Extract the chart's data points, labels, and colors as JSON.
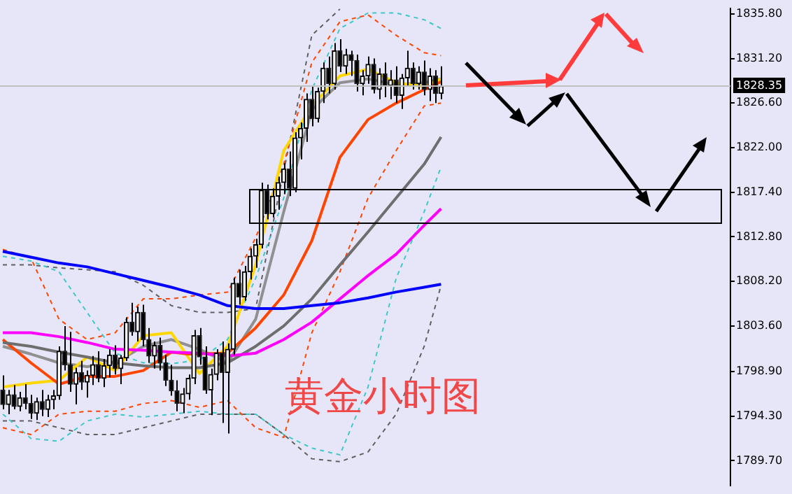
{
  "chart_data": {
    "type": "candlestick",
    "title": "黄金小时图",
    "categories": [
      null,
      null,
      null,
      null,
      null,
      null,
      null,
      null,
      null,
      null,
      null,
      null,
      null,
      null,
      null,
      null,
      null,
      null,
      null,
      null,
      null,
      null,
      null,
      null,
      null,
      null,
      null,
      null,
      null,
      null,
      null,
      null,
      null,
      null,
      null,
      null,
      null,
      null,
      null,
      null,
      null,
      null,
      null,
      null,
      null,
      null,
      null,
      null,
      null,
      null,
      null,
      null,
      null,
      null,
      null,
      null,
      null,
      null,
      null,
      null,
      null,
      null,
      null,
      null,
      null,
      null,
      null,
      null,
      null,
      null,
      null,
      null,
      null,
      null,
      null,
      null,
      null,
      null,
      null,
      null,
      null,
      null,
      null,
      null,
      null,
      null,
      null,
      null,
      null,
      null,
      null,
      null,
      null,
      null,
      null,
      null,
      null,
      null,
      null,
      null,
      null,
      null,
      null,
      null,
      null,
      null,
      null,
      null,
      null,
      null,
      null,
      null,
      null,
      null,
      null,
      null,
      null,
      null,
      null,
      null,
      null,
      null,
      null,
      null,
      null,
      null,
      null,
      null,
      null,
      null
    ],
    "ohlc": [
      [
        1797.0,
        1798.5,
        1795.0,
        1795.5
      ],
      [
        1795.5,
        1797.0,
        1794.5,
        1796.5
      ],
      [
        1796.5,
        1797.5,
        1795.0,
        1795.3
      ],
      [
        1795.3,
        1796.8,
        1794.8,
        1796.2
      ],
      [
        1796.2,
        1797.6,
        1795.0,
        1795.6
      ],
      [
        1795.6,
        1796.5,
        1794.0,
        1794.6
      ],
      [
        1794.6,
        1796.2,
        1793.9,
        1795.8
      ],
      [
        1795.8,
        1797.0,
        1794.3,
        1795.0
      ],
      [
        1795.0,
        1796.5,
        1794.2,
        1796.0
      ],
      [
        1796.0,
        1797.0,
        1795.0,
        1796.4
      ],
      [
        1796.4,
        1801.5,
        1796.0,
        1801.0
      ],
      [
        1801.0,
        1803.6,
        1799.0,
        1799.6
      ],
      [
        1799.6,
        1803.0,
        1796.8,
        1797.6
      ],
      [
        1797.6,
        1799.3,
        1795.5,
        1798.8
      ],
      [
        1798.8,
        1800.0,
        1797.0,
        1797.8
      ],
      [
        1797.8,
        1799.0,
        1796.2,
        1798.5
      ],
      [
        1798.5,
        1800.5,
        1797.5,
        1799.6
      ],
      [
        1799.6,
        1801.0,
        1797.8,
        1798.2
      ],
      [
        1798.2,
        1800.2,
        1797.3,
        1799.5
      ],
      [
        1799.5,
        1801.2,
        1798.3,
        1800.6
      ],
      [
        1800.6,
        1801.6,
        1798.6,
        1799.2
      ],
      [
        1799.2,
        1800.6,
        1797.6,
        1800.3
      ],
      [
        1800.3,
        1804.5,
        1800.0,
        1804.0
      ],
      [
        1804.0,
        1806.0,
        1802.6,
        1803.0
      ],
      [
        1803.0,
        1805.6,
        1802.0,
        1805.0
      ],
      [
        1805.0,
        1805.8,
        1801.5,
        1802.2
      ],
      [
        1802.2,
        1803.4,
        1799.8,
        1800.5
      ],
      [
        1800.5,
        1802.0,
        1799.2,
        1801.6
      ],
      [
        1801.6,
        1802.4,
        1799.0,
        1799.8
      ],
      [
        1799.8,
        1800.6,
        1797.4,
        1798.0
      ],
      [
        1798.0,
        1799.6,
        1796.4,
        1796.9
      ],
      [
        1796.9,
        1798.0,
        1794.8,
        1795.6
      ],
      [
        1795.6,
        1797.2,
        1794.6,
        1796.6
      ],
      [
        1796.6,
        1798.6,
        1796.0,
        1798.2
      ],
      [
        1798.2,
        1803.2,
        1797.6,
        1802.6
      ],
      [
        1802.6,
        1803.4,
        1799.6,
        1800.4
      ],
      [
        1800.4,
        1801.5,
        1796.6,
        1797.0
      ],
      [
        1797.0,
        1799.2,
        1794.4,
        1798.6
      ],
      [
        1798.6,
        1801.2,
        1798.0,
        1800.8
      ],
      [
        1800.8,
        1802.0,
        1793.6,
        1798.8
      ],
      [
        1798.8,
        1801.8,
        1792.5,
        1801.2
      ],
      [
        1801.2,
        1808.6,
        1800.6,
        1808.0
      ],
      [
        1808.0,
        1809.4,
        1805.8,
        1806.6
      ],
      [
        1806.6,
        1809.8,
        1806.2,
        1809.2
      ],
      [
        1809.2,
        1811.6,
        1808.4,
        1810.8
      ],
      [
        1810.8,
        1812.6,
        1809.6,
        1812.0
      ],
      [
        1812.0,
        1818.4,
        1811.6,
        1817.6
      ],
      [
        1817.6,
        1818.2,
        1814.6,
        1815.2
      ],
      [
        1815.2,
        1817.8,
        1814.8,
        1817.0
      ],
      [
        1817.0,
        1819.0,
        1815.6,
        1818.4
      ],
      [
        1818.4,
        1820.4,
        1817.2,
        1819.8
      ],
      [
        1819.8,
        1821.6,
        1817.0,
        1817.8
      ],
      [
        1817.8,
        1823.6,
        1817.4,
        1823.0
      ],
      [
        1823.0,
        1824.6,
        1820.8,
        1824.0
      ],
      [
        1824.0,
        1827.6,
        1822.6,
        1827.0
      ],
      [
        1827.0,
        1828.4,
        1824.2,
        1825.0
      ],
      [
        1825.0,
        1828.2,
        1824.6,
        1827.8
      ],
      [
        1827.8,
        1830.8,
        1826.6,
        1830.2
      ],
      [
        1830.2,
        1831.4,
        1827.6,
        1828.6
      ],
      [
        1828.6,
        1832.8,
        1828.0,
        1832.0
      ],
      [
        1832.0,
        1833.2,
        1829.8,
        1830.4
      ],
      [
        1830.4,
        1832.2,
        1829.6,
        1831.6
      ],
      [
        1831.6,
        1832.0,
        1829.4,
        1831.0
      ],
      [
        1831.0,
        1831.6,
        1827.8,
        1828.6
      ],
      [
        1828.6,
        1830.0,
        1827.4,
        1829.4
      ],
      [
        1829.4,
        1831.4,
        1828.6,
        1830.6
      ],
      [
        1830.6,
        1831.2,
        1827.6,
        1828.0
      ],
      [
        1828.0,
        1830.2,
        1827.0,
        1829.6
      ],
      [
        1829.6,
        1830.8,
        1827.2,
        1828.4
      ],
      [
        1828.4,
        1830.0,
        1827.0,
        1829.0
      ],
      [
        1829.0,
        1830.4,
        1826.6,
        1827.4
      ],
      [
        1827.4,
        1829.6,
        1826.0,
        1829.2
      ],
      [
        1829.2,
        1832.0,
        1828.4,
        1830.2
      ],
      [
        1830.2,
        1830.8,
        1828.0,
        1828.6
      ],
      [
        1828.6,
        1830.4,
        1828.0,
        1829.8
      ],
      [
        1829.8,
        1831.0,
        1827.4,
        1828.0
      ],
      [
        1828.0,
        1830.2,
        1826.8,
        1829.4
      ],
      [
        1829.4,
        1830.0,
        1826.6,
        1827.6
      ],
      [
        1827.6,
        1830.4,
        1827.0,
        1828.35
      ],
      null,
      null,
      null,
      null,
      null,
      null,
      null,
      null,
      null,
      null,
      null,
      null,
      null,
      null,
      null,
      null,
      null,
      null,
      null,
      null,
      null,
      null,
      null,
      null,
      null,
      null,
      null,
      null,
      null,
      null,
      null,
      null,
      null,
      null,
      null,
      null,
      null,
      null,
      null,
      null,
      null,
      null,
      null,
      null,
      null,
      null,
      null,
      null,
      null,
      null,
      null
    ],
    "series": [
      {
        "type": "line",
        "color": "#0000ff",
        "values": [
          1811.3,
          null,
          null,
          null,
          null,
          1810.7,
          null,
          null,
          null,
          null,
          1810.1,
          null,
          null,
          null,
          null,
          1809.7,
          null,
          null,
          null,
          null,
          1809.0,
          null,
          null,
          null,
          null,
          1808.3,
          null,
          null,
          null,
          null,
          1807.6,
          null,
          null,
          null,
          null,
          1806.8,
          null,
          null,
          null,
          null,
          1805.7,
          null,
          null,
          null,
          null,
          1805.4,
          null,
          null,
          null,
          null,
          1805.4,
          null,
          null,
          null,
          null,
          1805.7,
          null,
          null,
          null,
          null,
          1806.0,
          null,
          null,
          null,
          null,
          1806.5,
          null,
          null,
          null,
          null,
          1807.1,
          null,
          null,
          null,
          null,
          1807.6,
          null,
          null,
          1807.9,
          null,
          null,
          null,
          null,
          null,
          null,
          null,
          null,
          null,
          null,
          null,
          null,
          null,
          null,
          null,
          null,
          null,
          null,
          null,
          null,
          null,
          null,
          null,
          null,
          null,
          null,
          null,
          null,
          null,
          null,
          null,
          null,
          null,
          null,
          null,
          null,
          null,
          null,
          null,
          null,
          null,
          null,
          null,
          null,
          null,
          null,
          null,
          null,
          null,
          null,
          null
        ]
      },
      {
        "type": "line",
        "color": "#ff00ff",
        "values": [
          1802.9,
          null,
          null,
          null,
          null,
          1802.9,
          null,
          null,
          null,
          null,
          1802.5,
          null,
          null,
          null,
          null,
          1801.9,
          null,
          null,
          null,
          null,
          1801.2,
          null,
          null,
          null,
          null,
          1801.1,
          null,
          null,
          null,
          null,
          1800.9,
          null,
          null,
          null,
          null,
          1800.8,
          null,
          null,
          null,
          null,
          1800.5,
          null,
          null,
          null,
          null,
          1800.8,
          null,
          null,
          null,
          null,
          1802.2,
          null,
          null,
          null,
          null,
          1804.0,
          null,
          null,
          null,
          null,
          1806.4,
          null,
          null,
          null,
          null,
          1808.8,
          null,
          null,
          null,
          null,
          1811.0,
          null,
          null,
          null,
          null,
          1814.0,
          null,
          null,
          1815.7,
          null,
          null,
          null,
          null,
          null,
          null,
          null,
          null,
          null,
          null,
          null,
          null,
          null,
          null,
          null,
          null,
          null,
          null,
          null,
          null,
          null,
          null,
          null,
          null,
          null,
          null,
          null,
          null,
          null,
          null,
          null,
          null,
          null,
          null,
          null,
          null,
          null,
          null,
          null,
          null,
          null,
          null,
          null,
          null,
          null,
          null,
          null,
          null,
          null,
          null,
          null
        ]
      },
      {
        "type": "line",
        "color": "#6e6e6e",
        "values": [
          1801.9,
          null,
          null,
          null,
          null,
          1801.5,
          null,
          null,
          null,
          null,
          1800.9,
          null,
          null,
          null,
          null,
          1800.4,
          null,
          null,
          null,
          null,
          1799.8,
          null,
          null,
          null,
          null,
          1799.5,
          null,
          null,
          null,
          null,
          1799.3,
          null,
          null,
          null,
          null,
          1799.3,
          null,
          null,
          null,
          null,
          1799.8,
          null,
          null,
          null,
          null,
          1801.5,
          null,
          null,
          null,
          null,
          1803.6,
          null,
          null,
          null,
          null,
          1806.4,
          null,
          null,
          null,
          null,
          1809.9,
          null,
          null,
          null,
          null,
          1813.3,
          null,
          null,
          null,
          null,
          1816.8,
          null,
          null,
          null,
          null,
          1820.3,
          null,
          null,
          1823.1,
          null,
          null,
          null,
          null,
          null,
          null,
          null,
          null,
          null,
          null,
          null,
          null,
          null,
          null,
          null,
          null,
          null,
          null,
          null,
          null,
          null,
          null,
          null,
          null,
          null,
          null,
          null,
          null,
          null,
          null,
          null,
          null,
          null,
          null,
          null,
          null,
          null,
          null,
          null,
          null,
          null,
          null,
          null,
          null,
          null,
          null,
          null,
          null,
          null,
          null,
          null
        ]
      },
      {
        "type": "line",
        "color": "#ff4500",
        "values": [
          1802.2,
          null,
          null,
          null,
          null,
          1799.8,
          null,
          null,
          null,
          null,
          1797.6,
          null,
          null,
          null,
          null,
          1798.4,
          null,
          null,
          null,
          null,
          1798.4,
          null,
          null,
          null,
          null,
          1799.0,
          null,
          null,
          null,
          null,
          1800.9,
          null,
          null,
          1800.7,
          null,
          null,
          null,
          null,
          null,
          null,
          1800.8,
          null,
          null,
          null,
          null,
          1803.4,
          null,
          null,
          null,
          null,
          1806.8,
          null,
          null,
          null,
          null,
          1812.4,
          null,
          null,
          null,
          null,
          1821.0,
          null,
          null,
          null,
          null,
          1824.9,
          null,
          null,
          null,
          null,
          1826.6,
          null,
          null,
          null,
          null,
          1828.0,
          null,
          null,
          1828.8,
          null,
          null,
          null,
          null,
          null,
          null,
          null,
          null,
          null,
          null,
          null,
          null,
          null,
          null,
          null,
          null,
          null,
          null,
          null,
          null,
          null,
          null,
          null,
          null,
          null,
          null,
          null,
          null,
          null,
          null,
          null,
          null,
          null,
          null,
          null,
          null,
          null,
          null,
          null,
          null,
          null,
          null,
          null,
          null,
          null,
          null,
          null,
          null,
          null,
          null,
          null
        ]
      },
      {
        "type": "line",
        "color": "#ffd700",
        "values": [
          1797.3,
          null,
          null,
          null,
          null,
          1797.7,
          null,
          null,
          null,
          null,
          1798.0,
          null,
          null,
          null,
          null,
          1800.4,
          null,
          null,
          null,
          null,
          1799.0,
          null,
          null,
          null,
          null,
          1802.6,
          null,
          null,
          null,
          null,
          1802.9,
          null,
          null,
          null,
          null,
          1798.7,
          null,
          null,
          null,
          null,
          1801.5,
          null,
          null,
          null,
          null,
          1809.9,
          null,
          null,
          null,
          null,
          1821.7,
          null,
          null,
          null,
          null,
          1826.3,
          null,
          null,
          null,
          null,
          1829.4,
          null,
          null,
          null,
          null,
          1830.1,
          null,
          null,
          null,
          null,
          1828.7,
          null,
          null,
          null,
          null,
          1828.3,
          null,
          null,
          1829.1,
          null,
          null,
          null,
          null,
          null,
          null,
          null,
          null,
          null,
          null,
          null,
          null,
          null,
          null,
          null,
          null,
          null,
          null,
          null,
          null,
          null,
          null,
          null,
          null,
          null,
          null,
          null,
          null,
          null,
          null,
          null,
          null,
          null,
          null,
          null,
          null,
          null,
          null,
          null,
          null,
          null,
          null,
          null,
          null,
          null,
          null,
          null,
          null,
          null,
          null,
          null
        ]
      },
      {
        "type": "line",
        "color": "#909090",
        "values": [
          1801.5,
          null,
          null,
          null,
          null,
          1800.7,
          null,
          null,
          null,
          null,
          1799.8,
          null,
          null,
          null,
          null,
          1799.4,
          null,
          null,
          null,
          null,
          1799.8,
          null,
          null,
          null,
          null,
          1801.5,
          null,
          null,
          null,
          null,
          1802.2,
          null,
          null,
          null,
          null,
          1801.2,
          null,
          null,
          null,
          null,
          1799.8,
          null,
          null,
          null,
          null,
          1804.3,
          null,
          null,
          null,
          null,
          1815.4,
          null,
          null,
          null,
          null,
          1825.9,
          null,
          null,
          null,
          null,
          1828.7,
          null,
          null,
          null,
          null,
          1829.1,
          null,
          null,
          null,
          null,
          1828.5,
          null,
          null,
          null,
          null,
          1828.7,
          null,
          null,
          1829.1,
          null,
          null,
          null,
          null,
          null,
          null,
          null,
          null,
          null,
          null,
          null,
          null,
          null,
          null,
          null,
          null,
          null,
          null,
          null,
          null,
          null,
          null,
          null,
          null,
          null,
          null,
          null,
          null,
          null,
          null,
          null,
          null,
          null,
          null,
          null,
          null,
          null,
          null,
          null,
          null,
          null,
          null,
          null,
          null,
          null,
          null,
          null,
          null,
          null,
          null,
          null
        ]
      },
      {
        "type": "line",
        "color": "#ff4500",
        "line_style": "dashed",
        "values": [
          1811.5,
          null,
          null,
          null,
          null,
          1810.6,
          null,
          null,
          null,
          null,
          1804.3,
          null,
          null,
          null,
          null,
          1802.2,
          null,
          null,
          null,
          null,
          1802.9,
          null,
          null,
          null,
          null,
          1806.4,
          null,
          null,
          null,
          null,
          1806.4,
          null,
          null,
          null,
          null,
          1806.8,
          null,
          null,
          null,
          null,
          1807.1,
          null,
          null,
          null,
          null,
          1812.7,
          null,
          null,
          null,
          null,
          1820.3,
          null,
          null,
          null,
          null,
          1830.8,
          null,
          null,
          null,
          null,
          1835.0,
          null,
          null,
          null,
          null,
          1835.7,
          null,
          null,
          null,
          null,
          1833.6,
          null,
          null,
          null,
          null,
          1831.8,
          null,
          null,
          1831.5,
          null,
          null,
          null,
          null,
          null,
          null,
          null,
          null,
          null,
          null,
          null,
          null,
          null,
          null,
          null,
          null,
          null,
          null,
          null,
          null,
          null,
          null,
          null,
          null,
          null,
          null,
          null,
          null,
          null,
          null,
          null,
          null,
          null,
          null,
          null,
          null,
          null,
          null,
          null,
          null,
          null,
          null,
          null,
          null,
          null,
          null,
          null,
          null,
          null,
          null,
          null
        ]
      },
      {
        "type": "line",
        "color": "#ff4500",
        "line_style": "dashed",
        "values": [
          1793.1,
          null,
          null,
          null,
          null,
          1792.4,
          null,
          null,
          null,
          null,
          1794.5,
          null,
          null,
          null,
          null,
          1794.8,
          null,
          null,
          null,
          null,
          1794.8,
          null,
          null,
          null,
          null,
          1795.6,
          null,
          null,
          null,
          null,
          1795.9,
          null,
          null,
          null,
          null,
          1795.2,
          null,
          null,
          null,
          null,
          1795.9,
          null,
          null,
          null,
          null,
          1793.1,
          null,
          null,
          null,
          null,
          1792.1,
          null,
          null,
          null,
          null,
          1802.9,
          null,
          null,
          null,
          null,
          1809.2,
          null,
          null,
          null,
          null,
          1816.8,
          null,
          null,
          null,
          null,
          1821.7,
          null,
          null,
          null,
          null,
          1826.3,
          null,
          null,
          1826.6,
          null,
          null,
          null,
          null,
          null,
          null,
          null,
          null,
          null,
          null,
          null,
          null,
          null,
          null,
          null,
          null,
          null,
          null,
          null,
          null,
          null,
          null,
          null,
          null,
          null,
          null,
          null,
          null,
          null,
          null,
          null,
          null,
          null,
          null,
          null,
          null,
          null,
          null,
          null,
          null,
          null,
          null,
          null,
          null,
          null,
          null,
          null,
          null,
          null,
          null,
          null
        ]
      },
      {
        "type": "line",
        "color": "#40c8c8",
        "line_style": "dashed",
        "values": [
          1810.8,
          null,
          null,
          null,
          null,
          1810.3,
          null,
          null,
          null,
          null,
          1809.2,
          null,
          null,
          null,
          null,
          1805.0,
          null,
          null,
          null,
          null,
          1800.8,
          null,
          null,
          null,
          null,
          1799.8,
          null,
          null,
          null,
          null,
          1799.7,
          null,
          null,
          null,
          null,
          1800.1,
          null,
          null,
          null,
          null,
          1802.2,
          null,
          null,
          null,
          null,
          1808.5,
          null,
          null,
          null,
          null,
          1816.8,
          null,
          null,
          null,
          null,
          1828.0,
          null,
          null,
          null,
          null,
          1834.3,
          null,
          null,
          null,
          null,
          1835.9,
          null,
          null,
          null,
          null,
          1835.9,
          null,
          null,
          null,
          null,
          1835.2,
          null,
          null,
          1834.3,
          null,
          null,
          null,
          null,
          null,
          null,
          null,
          null,
          null,
          null,
          null,
          null,
          null,
          null,
          null,
          null,
          null,
          null,
          null,
          null,
          null,
          null,
          null,
          null,
          null,
          null,
          null,
          null,
          null,
          null,
          null,
          null,
          null,
          null,
          null,
          null,
          null,
          null,
          null,
          null,
          null,
          null,
          null,
          null,
          null,
          null,
          null,
          null,
          null,
          null,
          null
        ]
      },
      {
        "type": "line",
        "color": "#40c8c8",
        "line_style": "dashed",
        "values": [
          1794.5,
          null,
          null,
          null,
          null,
          1792.0,
          null,
          null,
          null,
          null,
          1791.7,
          null,
          null,
          null,
          null,
          1793.8,
          null,
          null,
          null,
          null,
          1794.5,
          null,
          null,
          null,
          null,
          1794.2,
          null,
          null,
          null,
          null,
          1794.5,
          null,
          null,
          null,
          null,
          1794.8,
          null,
          null,
          null,
          null,
          1794.5,
          null,
          null,
          null,
          null,
          1794.5,
          null,
          null,
          null,
          null,
          1792.4,
          null,
          null,
          null,
          null,
          1791.0,
          null,
          null,
          null,
          null,
          1790.3,
          null,
          null,
          null,
          null,
          1797.3,
          null,
          null,
          null,
          null,
          1808.5,
          null,
          null,
          null,
          null,
          1815.4,
          null,
          null,
          1820.0,
          null,
          null,
          null,
          null,
          null,
          null,
          null,
          null,
          null,
          null,
          null,
          null,
          null,
          null,
          null,
          null,
          null,
          null,
          null,
          null,
          null,
          null,
          null,
          null,
          null,
          null,
          null,
          null,
          null,
          null,
          null,
          null,
          null,
          null,
          null,
          null,
          null,
          null,
          null,
          null,
          null,
          null,
          null,
          null,
          null,
          null,
          null,
          null,
          null,
          null,
          null
        ]
      },
      {
        "type": "line",
        "color": "#606060",
        "line_style": "dashed",
        "values": [
          1809.9,
          null,
          null,
          null,
          null,
          1809.9,
          null,
          null,
          null,
          null,
          1809.6,
          null,
          null,
          null,
          null,
          1809.4,
          null,
          null,
          null,
          null,
          1809.2,
          null,
          null,
          null,
          null,
          1807.8,
          null,
          null,
          null,
          null,
          1805.7,
          null,
          null,
          null,
          null,
          1805.0,
          null,
          null,
          null,
          null,
          1805.0,
          null,
          null,
          null,
          null,
          1805.4,
          null,
          null,
          null,
          null,
          1819.6,
          null,
          null,
          null,
          null,
          1833.6,
          null,
          null,
          null,
          null,
          1836.3,
          null,
          null,
          null,
          null,
          null,
          null,
          null,
          null,
          null,
          null,
          null,
          null,
          null,
          null,
          null,
          null,
          null,
          null,
          null,
          null,
          null,
          null,
          null,
          null,
          null,
          null,
          null,
          null,
          null,
          null,
          null,
          null,
          null,
          null,
          null,
          null,
          null,
          null,
          null,
          null,
          null,
          null,
          null,
          null,
          null,
          null,
          null,
          null,
          null,
          null,
          null,
          null,
          null,
          null,
          null,
          null,
          null,
          null,
          null,
          null,
          null,
          null,
          null,
          null,
          null,
          null,
          null,
          null,
          null
        ]
      },
      {
        "type": "line",
        "color": "#606060",
        "line_style": "dashed",
        "values": [
          1793.8,
          null,
          null,
          null,
          null,
          1793.8,
          null,
          null,
          null,
          null,
          1793.1,
          null,
          null,
          null,
          null,
          1792.4,
          null,
          null,
          null,
          null,
          1792.4,
          null,
          null,
          null,
          null,
          1793.1,
          null,
          null,
          null,
          null,
          1793.8,
          null,
          null,
          null,
          null,
          1794.5,
          null,
          null,
          null,
          null,
          1794.5,
          null,
          null,
          null,
          null,
          1794.5,
          null,
          null,
          null,
          null,
          1792.4,
          null,
          null,
          null,
          null,
          1789.9,
          null,
          null,
          null,
          null,
          1789.6,
          null,
          null,
          null,
          null,
          1790.6,
          null,
          null,
          null,
          null,
          1794.5,
          null,
          null,
          null,
          null,
          1801.5,
          null,
          null,
          1807.8,
          null,
          null,
          null,
          null,
          null,
          null,
          null,
          null,
          null,
          null,
          null,
          null,
          null,
          null,
          null,
          null,
          null,
          null,
          null,
          null,
          null,
          null,
          null,
          null,
          null,
          null,
          null,
          null,
          null,
          null,
          null,
          null,
          null,
          null,
          null,
          null,
          null,
          null,
          null,
          null,
          null,
          null,
          null,
          null,
          null,
          null,
          null,
          null,
          null,
          null,
          null
        ]
      }
    ],
    "ylim": [
      1787.1,
      1836.4
    ],
    "yticks": [
      {
        "value": 1835.8,
        "label": "1835.80"
      },
      {
        "value": 1831.2,
        "label": "1831.20"
      },
      {
        "value": 1826.6,
        "label": "1826.60"
      },
      {
        "value": 1822.0,
        "label": "1822.00"
      },
      {
        "value": 1817.4,
        "label": "1817.40"
      },
      {
        "value": 1812.8,
        "label": "1812.80"
      },
      {
        "value": 1808.2,
        "label": "1808.20"
      },
      {
        "value": 1803.6,
        "label": "1803.60"
      },
      {
        "value": 1798.9,
        "label": "1798.90"
      },
      {
        "value": 1794.3,
        "label": "1794.30"
      },
      {
        "value": 1789.7,
        "label": "1789.70"
      }
    ],
    "ref_lines": [
      {
        "axis": "y",
        "value": 1828.35,
        "label": "1828.35",
        "color": "#c0c0c0"
      }
    ],
    "tick_labels": "y",
    "legend": false
  }
}
